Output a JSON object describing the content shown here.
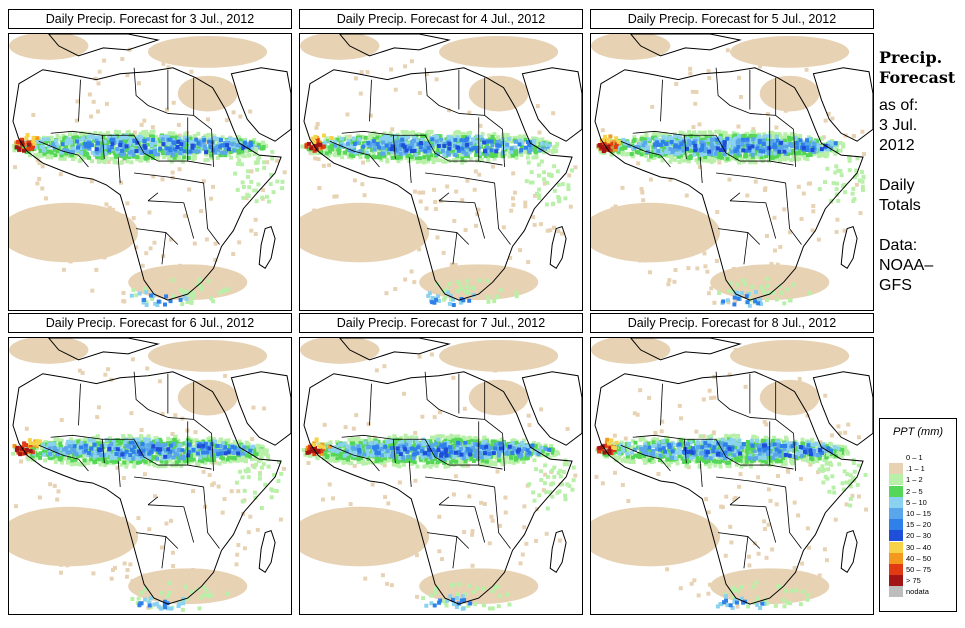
{
  "panels": [
    {
      "title": "Daily Precip. Forecast for  3 Jul., 2012",
      "seed": 11,
      "wet": 0.9
    },
    {
      "title": "Daily Precip. Forecast for  4 Jul., 2012",
      "seed": 23,
      "wet": 0.85
    },
    {
      "title": "Daily Precip. Forecast for  5 Jul., 2012",
      "seed": 37,
      "wet": 1.0
    },
    {
      "title": "Daily Precip. Forecast for  6 Jul., 2012",
      "seed": 41,
      "wet": 0.95
    },
    {
      "title": "Daily Precip. Forecast for  7 Jul., 2012",
      "seed": 53,
      "wet": 1.05
    },
    {
      "title": "Daily Precip. Forecast for  8 Jul., 2012",
      "seed": 67,
      "wet": 0.9
    }
  ],
  "side": {
    "heading_line1": "Precip.",
    "heading_line2": "Forecast",
    "asof_line1": "as of:",
    "asof_line2": "3 Jul.",
    "asof_line3": "2012",
    "daily_line1": "Daily",
    "daily_line2": "Totals",
    "data_line1": "Data:",
    "data_line2": "NOAA–",
    "data_line3": "GFS"
  },
  "legend": {
    "title": "PPT (mm)",
    "items": [
      {
        "label": "0 – 1",
        "color": "#ffffff"
      },
      {
        "label": ".1 – 1",
        "color": "#e7d2b3"
      },
      {
        "label": "1 – 2",
        "color": "#b9f0a9"
      },
      {
        "label": "2 – 5",
        "color": "#54d657"
      },
      {
        "label": "5 – 10",
        "color": "#8ad2f0"
      },
      {
        "label": "10 – 15",
        "color": "#5aa6ea"
      },
      {
        "label": "15 – 20",
        "color": "#2f80e8"
      },
      {
        "label": "20 – 30",
        "color": "#1f4fd8"
      },
      {
        "label": "30 – 40",
        "color": "#f7d34a"
      },
      {
        "label": "40 – 50",
        "color": "#f39a1e"
      },
      {
        "label": "50 – 75",
        "color": "#e23a12"
      },
      {
        "label": "> 75",
        "color": "#a31414"
      },
      {
        "label": "nodata",
        "color": "#bdbdbd"
      }
    ]
  }
}
